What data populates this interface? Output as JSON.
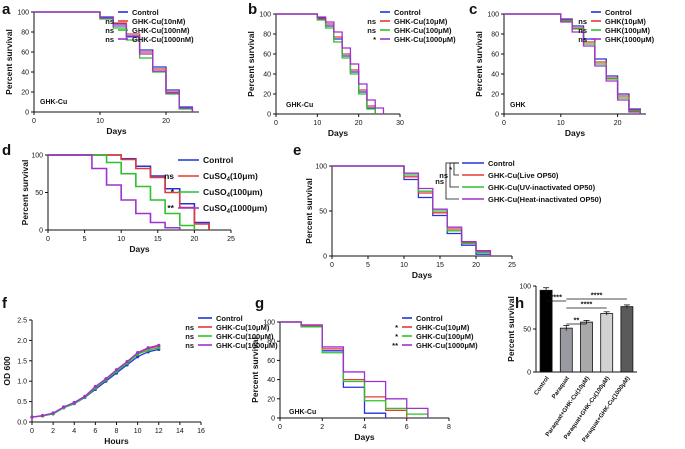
{
  "chart_data": [
    {
      "panel": "a",
      "type": "line",
      "step": true,
      "ylabel": "Percent survival",
      "xlabel": "Days",
      "annotation": "GHK-Cu",
      "xlim": [
        0,
        25
      ],
      "ylim": [
        0,
        100
      ],
      "xticks": [
        0,
        10,
        20
      ],
      "yticks": [
        0,
        20,
        40,
        60,
        80,
        100
      ],
      "series": [
        {
          "name": "Control",
          "color": "#2233dd",
          "sig": "",
          "x": [
            0,
            10,
            12,
            14,
            16,
            18,
            20,
            22,
            24
          ],
          "y": [
            100,
            95,
            88,
            76,
            62,
            45,
            22,
            5,
            0
          ]
        },
        {
          "name": "GHK-Cu(10nM)",
          "color": "#e53935",
          "sig": "ns",
          "x": [
            0,
            10,
            12,
            14,
            16,
            18,
            20,
            22,
            24
          ],
          "y": [
            100,
            94,
            89,
            78,
            60,
            43,
            20,
            4,
            0
          ]
        },
        {
          "name": "GHK-Cu(100nM)",
          "color": "#2fbf2f",
          "sig": "ns",
          "x": [
            0,
            10,
            12,
            14,
            16,
            18,
            20,
            22,
            24
          ],
          "y": [
            100,
            93,
            84,
            72,
            54,
            40,
            18,
            3,
            0
          ]
        },
        {
          "name": "GHK-Cu(1000nM)",
          "color": "#a030d0",
          "sig": "ns",
          "x": [
            0,
            10,
            12,
            14,
            16,
            18,
            20,
            22,
            24
          ],
          "y": [
            100,
            94,
            86,
            75,
            58,
            41,
            19,
            4,
            0
          ]
        }
      ]
    },
    {
      "panel": "b",
      "type": "line",
      "step": true,
      "ylabel": "Percent survival",
      "xlabel": "Days",
      "annotation": "GHK-Cu",
      "xlim": [
        0,
        30
      ],
      "ylim": [
        0,
        100
      ],
      "xticks": [
        0,
        10,
        20,
        30
      ],
      "yticks": [
        0,
        20,
        40,
        60,
        80,
        100
      ],
      "series": [
        {
          "name": "Control",
          "color": "#2233dd",
          "sig": "",
          "x": [
            0,
            10,
            12,
            14,
            16,
            18,
            20,
            22,
            24
          ],
          "y": [
            100,
            96,
            88,
            75,
            58,
            42,
            22,
            6,
            0
          ]
        },
        {
          "name": "GHK-Cu(10μM)",
          "color": "#e53935",
          "sig": "ns",
          "x": [
            0,
            10,
            12,
            14,
            16,
            18,
            20,
            22,
            24
          ],
          "y": [
            100,
            95,
            90,
            77,
            60,
            44,
            24,
            8,
            0
          ]
        },
        {
          "name": "GHK-Cu(100μM)",
          "color": "#2fbf2f",
          "sig": "ns",
          "x": [
            0,
            10,
            12,
            14,
            16,
            18,
            20,
            22,
            24
          ],
          "y": [
            100,
            94,
            86,
            72,
            56,
            40,
            20,
            5,
            0
          ]
        },
        {
          "name": "GHK-Cu(1000μM)",
          "color": "#a030d0",
          "sig": "*",
          "x": [
            0,
            10,
            12,
            14,
            16,
            18,
            20,
            22,
            24,
            26
          ],
          "y": [
            100,
            97,
            92,
            82,
            66,
            50,
            30,
            14,
            6,
            0
          ]
        }
      ]
    },
    {
      "panel": "c",
      "type": "line",
      "step": true,
      "ylabel": "Percent survival",
      "xlabel": "Days",
      "annotation": "GHK",
      "xlim": [
        0,
        25
      ],
      "ylim": [
        0,
        100
      ],
      "xticks": [
        0,
        10,
        20
      ],
      "yticks": [
        0,
        20,
        40,
        60,
        80,
        100
      ],
      "series": [
        {
          "name": "Control",
          "color": "#2233dd",
          "sig": "",
          "x": [
            0,
            10,
            12,
            14,
            16,
            18,
            20,
            22,
            24
          ],
          "y": [
            100,
            95,
            88,
            75,
            55,
            38,
            20,
            5,
            0
          ]
        },
        {
          "name": "GHK(10μM)",
          "color": "#e53935",
          "sig": "ns",
          "x": [
            0,
            10,
            12,
            14,
            16,
            18,
            20,
            22,
            24
          ],
          "y": [
            100,
            94,
            86,
            72,
            52,
            36,
            18,
            4,
            0
          ]
        },
        {
          "name": "GHK(100μM)",
          "color": "#2fbf2f",
          "sig": "ns",
          "x": [
            0,
            10,
            12,
            14,
            16,
            18,
            20,
            22,
            24
          ],
          "y": [
            100,
            93,
            85,
            70,
            50,
            35,
            16,
            3,
            0
          ]
        },
        {
          "name": "GHK(1000μM)",
          "color": "#a030d0",
          "sig": "ns",
          "x": [
            0,
            10,
            12,
            14,
            16,
            18,
            20,
            22,
            24
          ],
          "y": [
            100,
            92,
            82,
            68,
            48,
            33,
            14,
            2,
            0
          ]
        }
      ]
    },
    {
      "panel": "d",
      "type": "line",
      "step": true,
      "ylabel": "Percent survival",
      "xlabel": "Days",
      "annotation": "",
      "xlim": [
        0,
        25
      ],
      "ylim": [
        0,
        100
      ],
      "xticks": [
        0,
        5,
        10,
        15,
        20,
        25
      ],
      "yticks": [
        0,
        50,
        100
      ],
      "series": [
        {
          "name": "Control",
          "color": "#2233dd",
          "sig": "",
          "x": [
            0,
            10,
            12,
            14,
            16,
            18,
            20,
            22
          ],
          "y": [
            100,
            95,
            85,
            72,
            55,
            35,
            10,
            0
          ]
        },
        {
          "name": "CuSO4(10μm)",
          "color": "#e53935",
          "sig": "ns",
          "x": [
            0,
            10,
            12,
            14,
            16,
            18,
            20,
            22
          ],
          "y": [
            100,
            94,
            82,
            70,
            50,
            30,
            8,
            0
          ]
        },
        {
          "name": "CuSO4(100μm)",
          "color": "#2fbf2f",
          "sig": "*",
          "x": [
            0,
            8,
            10,
            12,
            14,
            16,
            18,
            20
          ],
          "y": [
            100,
            90,
            75,
            58,
            40,
            22,
            6,
            0
          ]
        },
        {
          "name": "CuSO4(1000μm)",
          "color": "#a030d0",
          "sig": "**",
          "x": [
            0,
            6,
            8,
            10,
            12,
            14,
            16,
            18
          ],
          "y": [
            100,
            82,
            60,
            40,
            22,
            10,
            3,
            0
          ]
        }
      ]
    },
    {
      "panel": "e",
      "type": "line",
      "step": true,
      "ylabel": "Percent survival",
      "xlabel": "Days",
      "annotation": "",
      "xlim": [
        0,
        25
      ],
      "ylim": [
        0,
        100
      ],
      "xticks": [
        0,
        5,
        10,
        15,
        20,
        25
      ],
      "yticks": [
        0,
        50,
        100
      ],
      "series": [
        {
          "name": "Control",
          "color": "#2233dd",
          "sig": "",
          "x": [
            0,
            10,
            12,
            14,
            16,
            18,
            20,
            22
          ],
          "y": [
            100,
            85,
            65,
            45,
            25,
            12,
            2,
            0
          ]
        },
        {
          "name": "GHK-Cu(Live OP50)",
          "color": "#e53935",
          "sig": "",
          "x": [
            0,
            10,
            12,
            14,
            16,
            18,
            20,
            22
          ],
          "y": [
            100,
            88,
            70,
            48,
            30,
            15,
            5,
            0
          ]
        },
        {
          "name": "GHK-Cu(UV-inactivated OP50)",
          "color": "#2fbf2f",
          "sig": "",
          "x": [
            0,
            10,
            12,
            14,
            16,
            18,
            20,
            22
          ],
          "y": [
            100,
            90,
            72,
            50,
            28,
            14,
            4,
            0
          ]
        },
        {
          "name": "GHK-Cu(Heat-inactivated OP50)",
          "color": "#a030d0",
          "sig": "",
          "x": [
            0,
            10,
            12,
            14,
            16,
            18,
            20,
            22
          ],
          "y": [
            100,
            92,
            75,
            52,
            32,
            16,
            6,
            0
          ]
        }
      ],
      "brackets": [
        {
          "label": "*",
          "from": 0,
          "to": 1
        },
        {
          "label": "ns",
          "from": 0,
          "to": 2
        },
        {
          "label": "ns",
          "from": 0,
          "to": 3
        }
      ]
    },
    {
      "panel": "f",
      "type": "line",
      "step": false,
      "ylabel": "OD 600",
      "xlabel": "Hours",
      "annotation": "",
      "xlim": [
        0,
        16
      ],
      "ylim": [
        0,
        2.5
      ],
      "xticks": [
        0,
        2,
        4,
        6,
        8,
        10,
        12,
        14,
        16
      ],
      "yticks": [
        0.0,
        0.5,
        1.0,
        1.5,
        2.0,
        2.5
      ],
      "series": [
        {
          "name": "Control",
          "color": "#2233dd",
          "sig": "",
          "x": [
            0,
            1,
            2,
            3,
            4,
            5,
            6,
            7,
            8,
            9,
            10,
            11,
            12
          ],
          "y": [
            0.12,
            0.15,
            0.2,
            0.35,
            0.45,
            0.6,
            0.8,
            1.0,
            1.2,
            1.4,
            1.6,
            1.72,
            1.78
          ]
        },
        {
          "name": "GHK-Cu(10μM)",
          "color": "#e53935",
          "sig": "ns",
          "x": [
            0,
            1,
            2,
            3,
            4,
            5,
            6,
            7,
            8,
            9,
            10,
            11,
            12
          ],
          "y": [
            0.12,
            0.15,
            0.21,
            0.36,
            0.47,
            0.62,
            0.85,
            1.05,
            1.26,
            1.46,
            1.68,
            1.8,
            1.86
          ]
        },
        {
          "name": "GHK-Cu(100μM)",
          "color": "#2fbf2f",
          "sig": "ns",
          "x": [
            0,
            1,
            2,
            3,
            4,
            5,
            6,
            7,
            8,
            9,
            10,
            11,
            12
          ],
          "y": [
            0.12,
            0.15,
            0.2,
            0.35,
            0.46,
            0.61,
            0.83,
            1.03,
            1.24,
            1.44,
            1.66,
            1.76,
            1.82
          ]
        },
        {
          "name": "GHK-Cu(1000μM)",
          "color": "#a030d0",
          "sig": "ns",
          "x": [
            0,
            1,
            2,
            3,
            4,
            5,
            6,
            7,
            8,
            9,
            10,
            11,
            12
          ],
          "y": [
            0.12,
            0.16,
            0.22,
            0.37,
            0.48,
            0.63,
            0.87,
            1.06,
            1.28,
            1.48,
            1.7,
            1.82,
            1.88
          ]
        }
      ]
    },
    {
      "panel": "g",
      "type": "line",
      "step": true,
      "ylabel": "Percent survival",
      "xlabel": "Days",
      "annotation": "GHK-Cu",
      "xlim": [
        0,
        8
      ],
      "ylim": [
        0,
        100
      ],
      "xticks": [
        0,
        2,
        4,
        6,
        8
      ],
      "yticks": [
        0,
        20,
        40,
        60,
        80,
        100
      ],
      "series": [
        {
          "name": "Control",
          "color": "#2233dd",
          "sig": "",
          "x": [
            0,
            1,
            2,
            3,
            4,
            5
          ],
          "y": [
            100,
            95,
            70,
            32,
            5,
            0
          ]
        },
        {
          "name": "GHK-Cu(10μM)",
          "color": "#e53935",
          "sig": "*",
          "x": [
            0,
            1,
            2,
            3,
            4,
            5,
            6
          ],
          "y": [
            100,
            96,
            72,
            40,
            22,
            8,
            0
          ]
        },
        {
          "name": "GHK-Cu(100μM)",
          "color": "#2fbf2f",
          "sig": "*",
          "x": [
            0,
            1,
            2,
            3,
            4,
            5,
            6,
            7
          ],
          "y": [
            100,
            95,
            68,
            38,
            18,
            10,
            4,
            0
          ]
        },
        {
          "name": "GHK-Cu(1000μM)",
          "color": "#a030d0",
          "sig": "**",
          "x": [
            0,
            1,
            2,
            3,
            4,
            5,
            6,
            7
          ],
          "y": [
            100,
            97,
            74,
            48,
            38,
            20,
            10,
            0
          ]
        }
      ]
    },
    {
      "panel": "h",
      "type": "bar",
      "ylabel": "Percent survival",
      "ylim": [
        0,
        100
      ],
      "yticks": [
        0,
        50,
        100
      ],
      "categories": [
        "Control",
        "Paraquat",
        "Paraquat+GHK-Cu(10μM)",
        "Paraquat+GHK-Cu(100μM)",
        "Paraquat+GHK-Cu(1000μM)"
      ],
      "values": [
        95,
        51,
        58,
        68,
        76
      ],
      "errors": [
        3,
        3,
        2,
        2,
        2
      ],
      "colors": [
        "#000000",
        "#9a9aa2",
        "#a9a9a9",
        "#d2d2d2",
        "#5a5a5a"
      ],
      "significance": [
        {
          "label": "****",
          "from": 0,
          "to": 1
        },
        {
          "label": "**",
          "from": 1,
          "to": 2
        },
        {
          "label": "****",
          "from": 1,
          "to": 3
        },
        {
          "label": "****",
          "from": 1,
          "to": 4
        }
      ]
    }
  ]
}
